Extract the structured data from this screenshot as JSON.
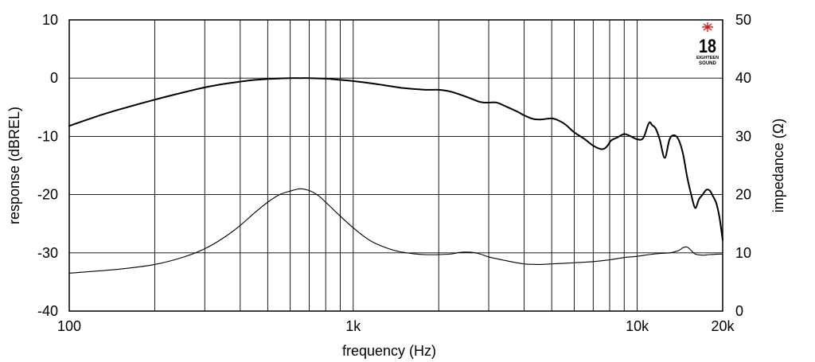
{
  "chart_data": {
    "type": "line",
    "xlabel": "frequency (Hz)",
    "ylabel_left": "response (dBREL)",
    "ylabel_right": "impedance (Ω)",
    "x_scale": "log",
    "xlim": [
      100,
      20000
    ],
    "ylim_left": [
      -40,
      10
    ],
    "ylim_right": [
      0,
      50
    ],
    "x_ticks": [
      100,
      1000,
      10000,
      20000
    ],
    "x_tick_labels": [
      "100",
      "1k",
      "10k",
      "20k"
    ],
    "y_left_ticks": [
      10,
      0,
      -10,
      -20,
      -30,
      -40
    ],
    "y_left_tick_labels": [
      "10",
      "0",
      "-10",
      "-20",
      "-30",
      "-40"
    ],
    "y_right_ticks": [
      50,
      40,
      30,
      20,
      10,
      0
    ],
    "y_right_tick_labels": [
      "50",
      "40",
      "30",
      "20",
      "10",
      "0"
    ],
    "grid": true,
    "logo": {
      "name": "eighteen-sound-logo",
      "big": "18",
      "small_1": "EIGHTEEN",
      "small_2": "SOUND",
      "star_color": "#d61a1a"
    },
    "series": [
      {
        "axis": "left",
        "color": "#000000",
        "x": [
          100,
          130,
          160,
          200,
          250,
          300,
          350,
          400,
          450,
          500,
          550,
          600,
          650,
          700,
          800,
          900,
          1000,
          1200,
          1500,
          1800,
          2000,
          2200,
          2500,
          2800,
          3000,
          3200,
          3500,
          3800,
          4000,
          4300,
          4600,
          5000,
          5300,
          5600,
          6000,
          6500,
          7000,
          7500,
          7800,
          8100,
          8500,
          9000,
          9500,
          10000,
          10500,
          11000,
          11300,
          11600,
          12000,
          12500,
          13000,
          13500,
          14000,
          14500,
          15000,
          15500,
          16000,
          16500,
          17000,
          17500,
          18000,
          18500,
          19000,
          19500,
          20000
        ],
        "values": [
          -8.2,
          -6.3,
          -5.0,
          -3.7,
          -2.5,
          -1.6,
          -1.0,
          -0.6,
          -0.3,
          -0.15,
          -0.05,
          0.0,
          0.0,
          0.0,
          -0.1,
          -0.3,
          -0.5,
          -1.0,
          -1.7,
          -2.0,
          -2.0,
          -2.3,
          -3.2,
          -4.1,
          -4.2,
          -4.2,
          -5.0,
          -5.8,
          -6.4,
          -7.0,
          -7.1,
          -6.9,
          -7.3,
          -8.0,
          -9.3,
          -10.4,
          -11.6,
          -12.2,
          -11.8,
          -10.7,
          -10.2,
          -9.6,
          -10.0,
          -10.5,
          -10.3,
          -7.7,
          -8.1,
          -8.6,
          -10.5,
          -13.7,
          -10.5,
          -9.8,
          -10.6,
          -13.0,
          -17.0,
          -20.0,
          -22.3,
          -20.8,
          -20.0,
          -19.2,
          -19.3,
          -20.3,
          -21.5,
          -24.0,
          -27.8
        ]
      },
      {
        "axis": "right",
        "color": "#000000",
        "x": [
          100,
          150,
          200,
          250,
          300,
          350,
          400,
          450,
          500,
          550,
          600,
          650,
          700,
          750,
          800,
          900,
          1000,
          1100,
          1200,
          1400,
          1600,
          1800,
          2000,
          2200,
          2400,
          2600,
          2800,
          3000,
          3500,
          4000,
          4500,
          5000,
          6000,
          7000,
          8000,
          9000,
          10000,
          11000,
          12000,
          13000,
          14000,
          14500,
          15000,
          15500,
          16000,
          17000,
          18000,
          20000
        ],
        "values": [
          6.5,
          7.2,
          8.0,
          9.2,
          10.7,
          12.6,
          14.7,
          16.9,
          18.7,
          20.0,
          20.6,
          21.0,
          20.7,
          19.9,
          18.7,
          16.3,
          14.3,
          12.7,
          11.6,
          10.4,
          9.9,
          9.7,
          9.7,
          9.8,
          10.1,
          10.1,
          9.8,
          9.3,
          8.6,
          8.1,
          8.0,
          8.1,
          8.3,
          8.5,
          8.8,
          9.2,
          9.4,
          9.7,
          9.9,
          10.0,
          10.4,
          10.9,
          11.0,
          10.4,
          9.8,
          9.6,
          9.7,
          9.8
        ]
      }
    ]
  }
}
